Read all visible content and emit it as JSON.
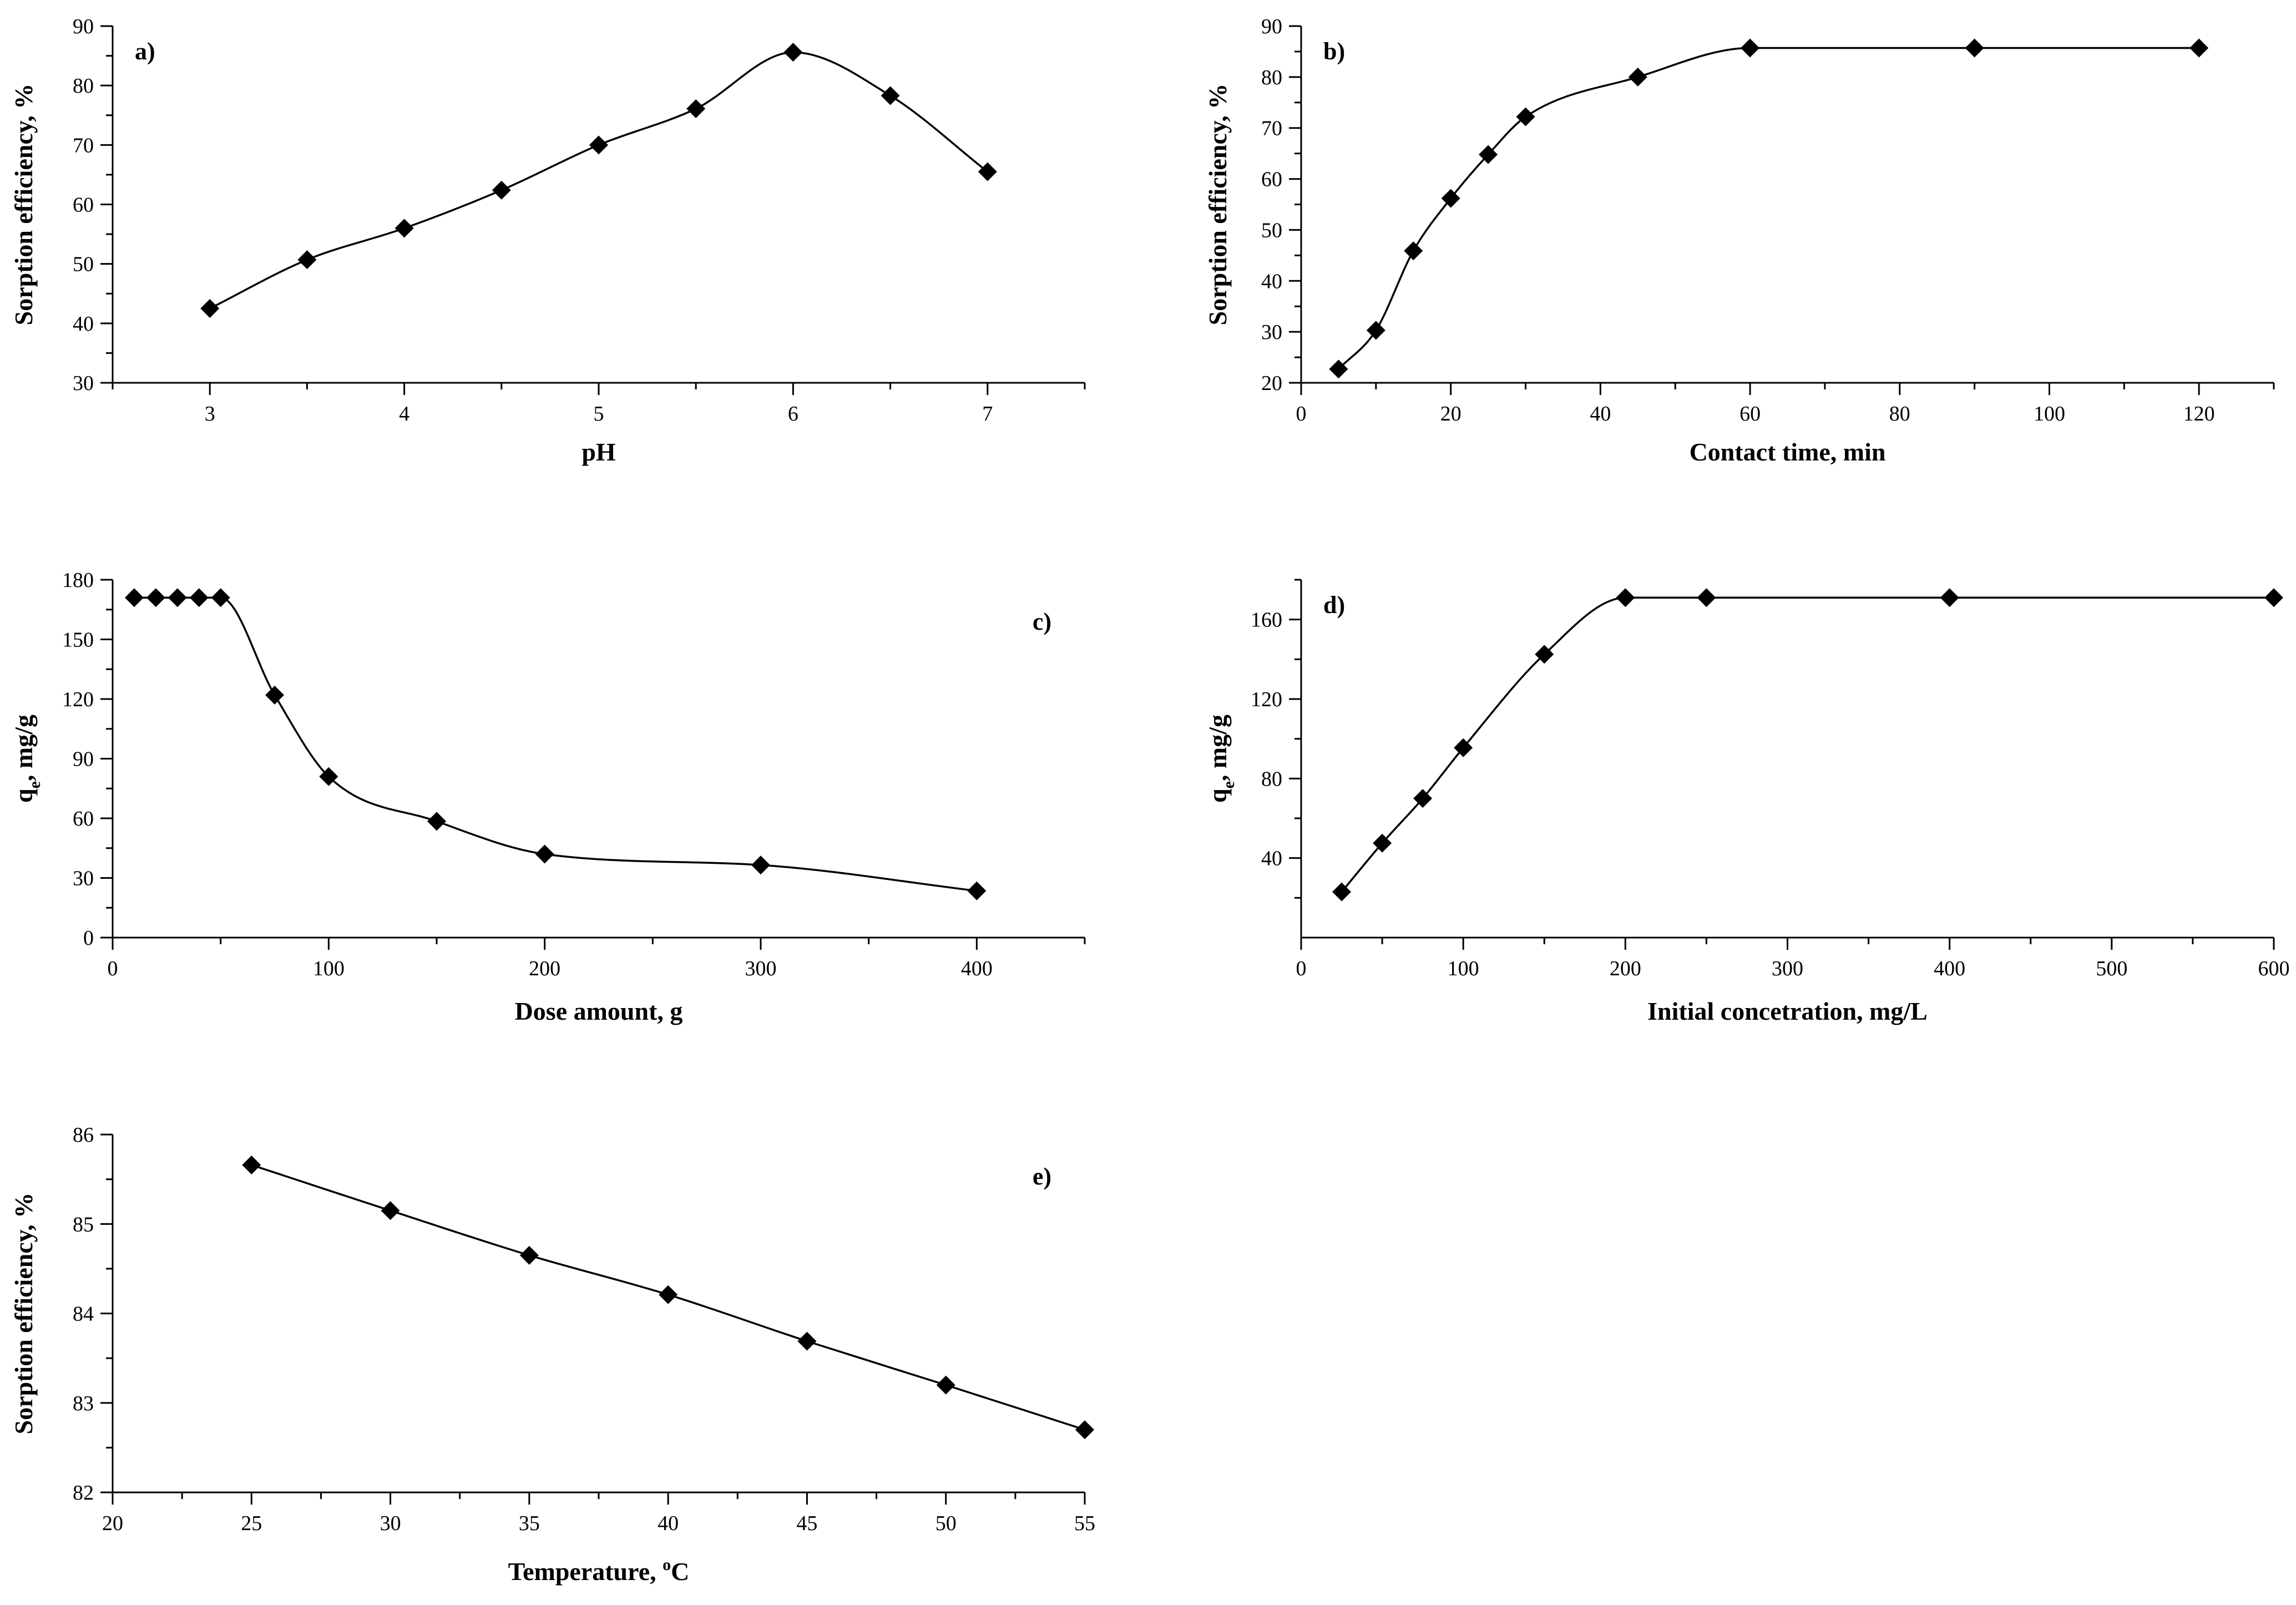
{
  "chart_data": [
    {
      "type": "line",
      "panel_label": "a)",
      "title": "",
      "xlabel": "pH",
      "ylabel": "Sorption efficiency, %",
      "xlim": [
        2.5,
        7.5
      ],
      "ylim": [
        30,
        90
      ],
      "xticks": [
        3,
        4,
        5,
        6,
        7
      ],
      "yticks": [
        30,
        40,
        50,
        60,
        70,
        80,
        90
      ],
      "x_minor_ticks": [
        2.5,
        3.5,
        4.5,
        5.5,
        6.5,
        7.5
      ],
      "y_minor_ticks": [
        35,
        45,
        55,
        65,
        75,
        85
      ],
      "label_position": "top-left",
      "legend": "none",
      "grid": false,
      "series": [
        {
          "name": "Sorption efficiency",
          "x": [
            3,
            3.5,
            4,
            4.5,
            5,
            5.5,
            6,
            6.5,
            7
          ],
          "y": [
            42.5,
            50.7,
            56,
            62.4,
            70,
            76.1,
            85.6,
            78.3,
            65.5
          ]
        }
      ]
    },
    {
      "type": "line",
      "panel_label": "b)",
      "title": "",
      "xlabel": "Contact time, min",
      "ylabel": "Sorption efficiency, %",
      "xlim": [
        0,
        130
      ],
      "ylim": [
        20,
        90
      ],
      "xticks": [
        0,
        20,
        40,
        60,
        80,
        100,
        120
      ],
      "yticks": [
        20,
        30,
        40,
        50,
        60,
        70,
        80,
        90
      ],
      "x_minor_ticks": [
        10,
        30,
        50,
        70,
        90,
        110,
        130
      ],
      "y_minor_ticks": [
        25,
        35,
        45,
        55,
        65,
        75,
        85
      ],
      "label_position": "top-left",
      "legend": "none",
      "grid": false,
      "series": [
        {
          "name": "Sorption efficiency",
          "x": [
            5,
            10,
            15,
            20,
            25,
            30,
            45,
            60,
            90,
            120
          ],
          "y": [
            22.7,
            30.3,
            45.9,
            56.2,
            64.8,
            72.2,
            80,
            85.7,
            85.7,
            85.7
          ]
        }
      ]
    },
    {
      "type": "line",
      "panel_label": "c)",
      "title": "",
      "xlabel": "Dose amount, g",
      "ylabel": "q",
      "ylabel_subscript": "e",
      "ylabel_suffix": ", mg/g",
      "xlim": [
        0,
        450
      ],
      "ylim": [
        0,
        180
      ],
      "xticks": [
        0,
        100,
        200,
        300,
        400
      ],
      "yticks": [
        0,
        30,
        60,
        90,
        120,
        150,
        180
      ],
      "x_minor_ticks": [
        50,
        150,
        250,
        350,
        450
      ],
      "y_minor_ticks": [
        15,
        45,
        75,
        105,
        135,
        165
      ],
      "label_position": "top-right",
      "legend": "none",
      "grid": false,
      "series": [
        {
          "name": "q_e",
          "x": [
            10,
            20,
            30,
            40,
            50,
            75,
            100,
            150,
            200,
            300,
            400
          ],
          "y": [
            171,
            171,
            171,
            171,
            171,
            122,
            81,
            58.5,
            42,
            36.5,
            23.5
          ]
        }
      ]
    },
    {
      "type": "line",
      "panel_label": "d)",
      "title": "",
      "xlabel": "Initial concetration, mg/L",
      "ylabel": "q",
      "ylabel_subscript": "e",
      "ylabel_suffix": ", mg/g",
      "xlim": [
        0,
        600
      ],
      "ylim": [
        0,
        180
      ],
      "xticks": [
        0,
        100,
        200,
        300,
        400,
        500,
        600
      ],
      "yticks": [
        40,
        80,
        120,
        160
      ],
      "x_minor_ticks": [
        50,
        150,
        250,
        350,
        450,
        550
      ],
      "y_minor_ticks": [
        20,
        60,
        100,
        140,
        180
      ],
      "label_position": "top-left",
      "legend": "none",
      "grid": false,
      "series": [
        {
          "name": "q_e",
          "x": [
            25,
            50,
            75,
            100,
            150,
            200,
            250,
            400,
            600
          ],
          "y": [
            23,
            47.5,
            70,
            95.5,
            142.5,
            171,
            171,
            171,
            171
          ]
        }
      ]
    },
    {
      "type": "line",
      "panel_label": "e)",
      "title": "",
      "xlabel": "Temperature, ",
      "xlabel_superscript": "o",
      "xlabel_suffix": "C",
      "ylabel": "Sorption efficiency, %",
      "xlim": [
        20,
        55
      ],
      "ylim": [
        82,
        86
      ],
      "xticks": [
        20,
        25,
        30,
        35,
        40,
        45,
        50,
        55
      ],
      "yticks": [
        82,
        83,
        84,
        85,
        86
      ],
      "x_minor_ticks": [
        22.5,
        27.5,
        32.5,
        37.5,
        42.5,
        47.5,
        52.5
      ],
      "y_minor_ticks": [
        82.5,
        83.5,
        84.5,
        85.5
      ],
      "label_position": "top-right",
      "legend": "none",
      "grid": false,
      "series": [
        {
          "name": "Sorption efficiency",
          "x": [
            25,
            30,
            35,
            40,
            45,
            50,
            55
          ],
          "y": [
            85.66,
            85.15,
            84.65,
            84.21,
            83.69,
            83.2,
            82.7
          ]
        }
      ]
    }
  ]
}
